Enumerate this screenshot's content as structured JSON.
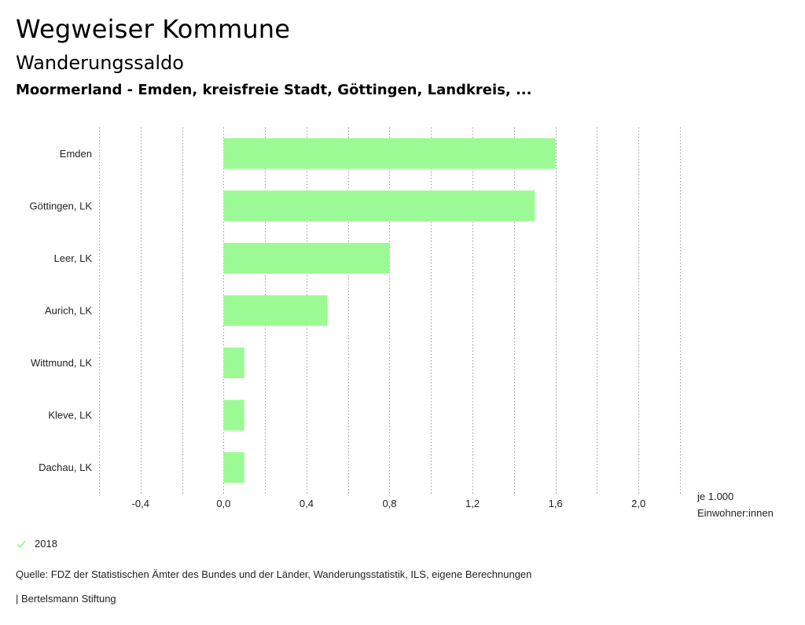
{
  "header": {
    "title": "Wegweiser Kommune",
    "subtitle": "Wanderungssaldo",
    "filter": "Moormerland - Emden, kreisfreie Stadt, Göttingen, Landkreis, ..."
  },
  "chart_data": {
    "type": "bar",
    "orientation": "horizontal",
    "categories": [
      "Emden",
      "Göttingen, LK",
      "Leer, LK",
      "Aurich, LK",
      "Wittmund, LK",
      "Kleve, LK",
      "Dachau, LK"
    ],
    "series": [
      {
        "name": "2018",
        "values": [
          1.6,
          1.5,
          0.8,
          0.5,
          0.1,
          0.1,
          0.1
        ],
        "color": "#9cfa94"
      }
    ],
    "xlim": [
      -0.6,
      2.2
    ],
    "xticks": [
      -0.4,
      0.0,
      0.4,
      0.8,
      1.2,
      1.6,
      2.0
    ],
    "xtick_labels": [
      "-0,4",
      "0,0",
      "0,4",
      "0,8",
      "1,2",
      "1,6",
      "2,0"
    ],
    "grid": true,
    "xlabel_lines": [
      "je 1.000",
      "Einwohner:innen"
    ]
  },
  "legend": {
    "label": "2018",
    "color": "#9cfa94"
  },
  "footer": {
    "source": "Quelle: FDZ der Statistischen Ämter des Bundes und der Länder, Wanderungsstatistik, ILS, eigene Berechnungen",
    "brand": "| Bertelsmann Stiftung"
  }
}
